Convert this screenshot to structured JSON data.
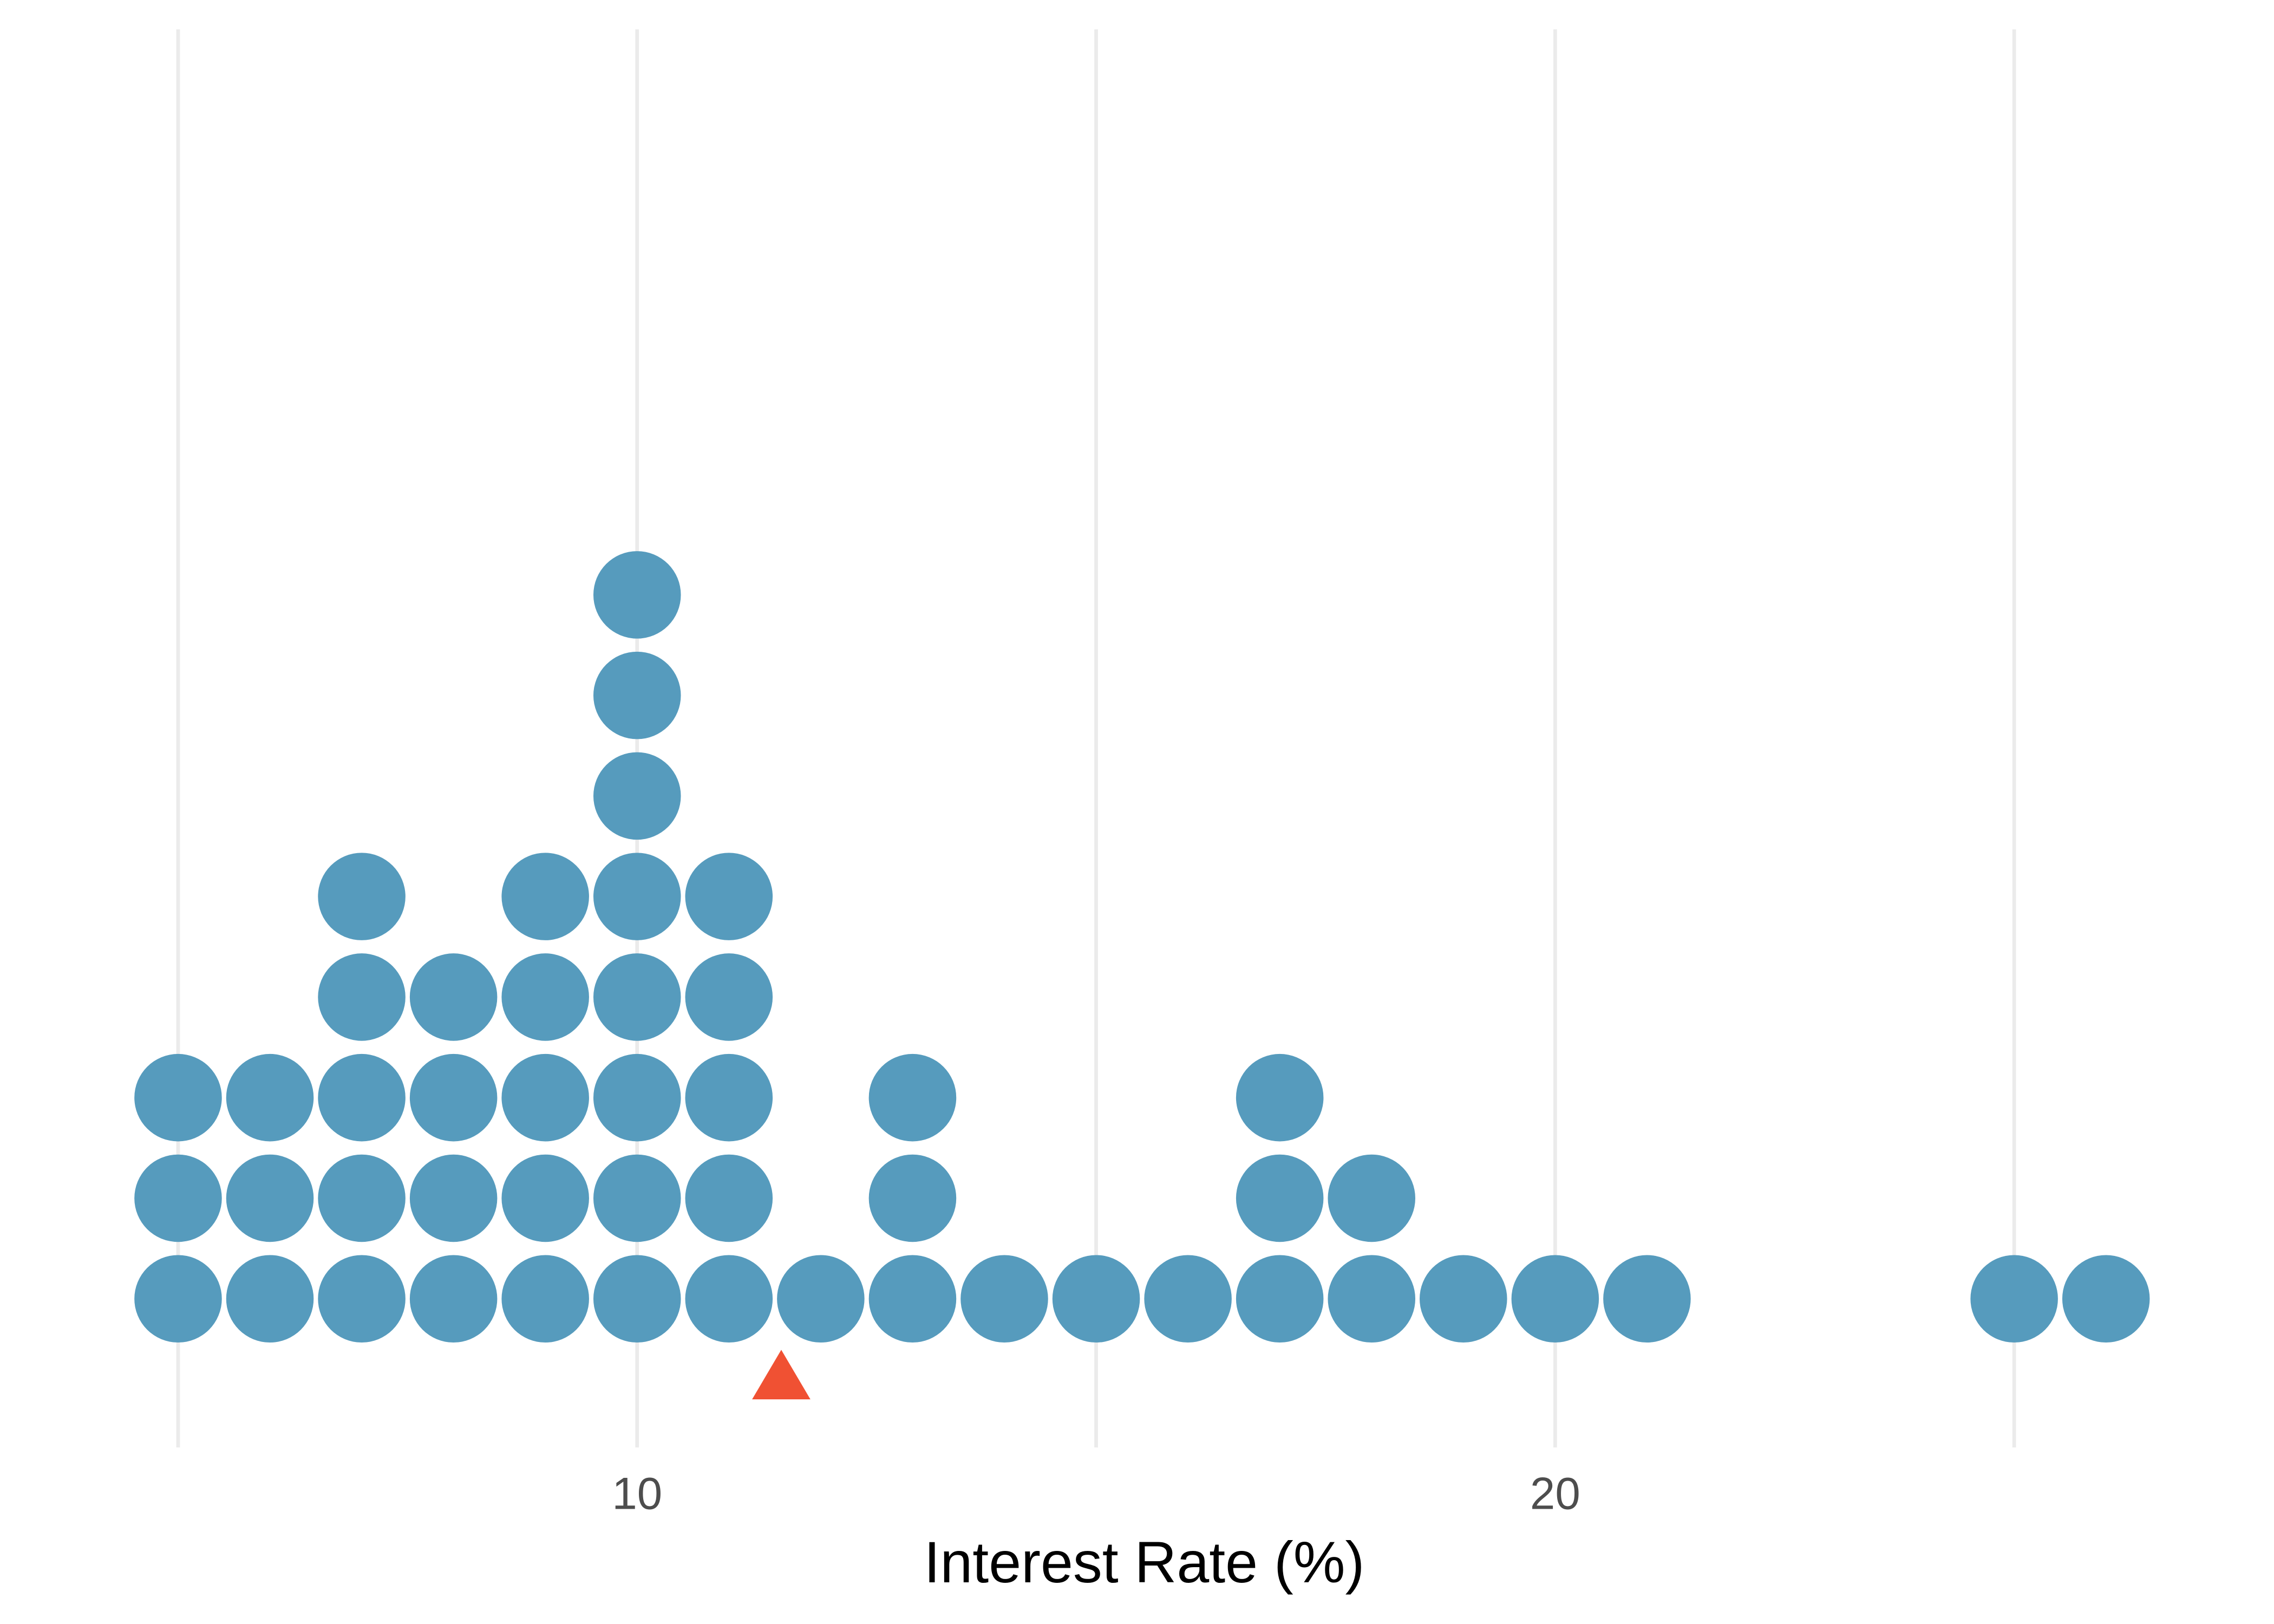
{
  "chart_data": {
    "type": "dotplot",
    "x_label": "Interest Rate (%)",
    "values": [
      5,
      5,
      5,
      6,
      6,
      6,
      7,
      7,
      7,
      7,
      7,
      8,
      8,
      8,
      8,
      9,
      9,
      9,
      9,
      9,
      10,
      10,
      10,
      10,
      10,
      10,
      10,
      10,
      11,
      11,
      11,
      11,
      11,
      12,
      13,
      13,
      13,
      14,
      15,
      16,
      17,
      17,
      17,
      18,
      18,
      19,
      20,
      21,
      25,
      26
    ],
    "color": "#569bbd",
    "mean": 11.57,
    "mean_color": "#f05133",
    "xlim": [
      3.06,
      27.83
    ],
    "xticks": [
      10,
      20
    ],
    "minor_xticks": [
      5,
      15,
      25
    ],
    "grid": true
  }
}
